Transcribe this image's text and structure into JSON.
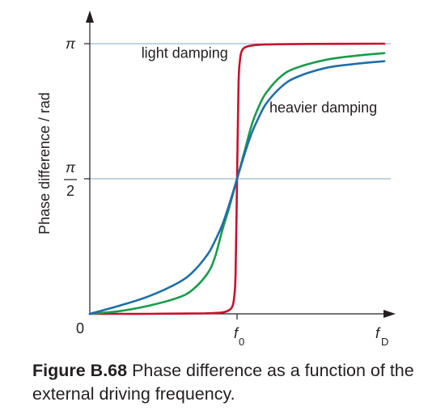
{
  "chart_data": {
    "type": "line",
    "ylabel": "Phase difference / rad",
    "y_ticks": [
      {
        "label": "0",
        "value": 0
      },
      {
        "label": "π/2",
        "value": 0.5
      },
      {
        "label": "π",
        "value": 1
      }
    ],
    "x_ticks": [
      {
        "label": "f0",
        "main": "f",
        "sub": "0",
        "value": 1
      }
    ],
    "x_axis_end_label": {
      "main": "f",
      "sub": "D"
    },
    "xlim": [
      0,
      2
    ],
    "ylim": [
      0,
      1
    ],
    "horizontal_reference_lines": [
      0.5,
      1
    ],
    "series": [
      {
        "color": "#c8102e",
        "points": [
          [
            0,
            0
          ],
          [
            0.2,
            0
          ],
          [
            0.4,
            0
          ],
          [
            0.6,
            0.001
          ],
          [
            0.8,
            0.002
          ],
          [
            0.9,
            0.005
          ],
          [
            0.95,
            0.015
          ],
          [
            0.97,
            0.03
          ],
          [
            0.98,
            0.06
          ],
          [
            0.99,
            0.15
          ],
          [
            1.0,
            0.5
          ],
          [
            1.01,
            0.85
          ],
          [
            1.02,
            0.94
          ],
          [
            1.03,
            0.97
          ],
          [
            1.05,
            0.985
          ],
          [
            1.1,
            0.993
          ],
          [
            1.2,
            0.997
          ],
          [
            1.5,
            0.999
          ],
          [
            2.0,
            1.0
          ]
        ]
      },
      {
        "color": "#1a9b4b",
        "points": [
          [
            0,
            0
          ],
          [
            0.2,
            0.01
          ],
          [
            0.4,
            0.03
          ],
          [
            0.6,
            0.06
          ],
          [
            0.7,
            0.09
          ],
          [
            0.8,
            0.15
          ],
          [
            0.85,
            0.21
          ],
          [
            0.9,
            0.31
          ],
          [
            0.95,
            0.4
          ],
          [
            1.0,
            0.5
          ],
          [
            1.05,
            0.6
          ],
          [
            1.1,
            0.7
          ],
          [
            1.15,
            0.77
          ],
          [
            1.2,
            0.82
          ],
          [
            1.3,
            0.88
          ],
          [
            1.4,
            0.91
          ],
          [
            1.6,
            0.94
          ],
          [
            1.8,
            0.955
          ],
          [
            2.0,
            0.965
          ]
        ]
      },
      {
        "color": "#1f6ea8",
        "points": [
          [
            0,
            0
          ],
          [
            0.2,
            0.03
          ],
          [
            0.4,
            0.065
          ],
          [
            0.6,
            0.115
          ],
          [
            0.7,
            0.155
          ],
          [
            0.8,
            0.22
          ],
          [
            0.85,
            0.27
          ],
          [
            0.9,
            0.33
          ],
          [
            0.95,
            0.41
          ],
          [
            1.0,
            0.5
          ],
          [
            1.05,
            0.59
          ],
          [
            1.1,
            0.67
          ],
          [
            1.15,
            0.73
          ],
          [
            1.2,
            0.78
          ],
          [
            1.3,
            0.84
          ],
          [
            1.4,
            0.875
          ],
          [
            1.6,
            0.91
          ],
          [
            1.8,
            0.925
          ],
          [
            2.0,
            0.935
          ]
        ]
      }
    ],
    "annotations": [
      {
        "text": "light damping",
        "x": 0.35,
        "y": 0.947
      },
      {
        "text": "heavier damping",
        "x": 1.22,
        "y": 0.745
      }
    ]
  },
  "caption": {
    "label": "Figure B.68",
    "text": "Phase difference as a function of the external driving frequency."
  }
}
